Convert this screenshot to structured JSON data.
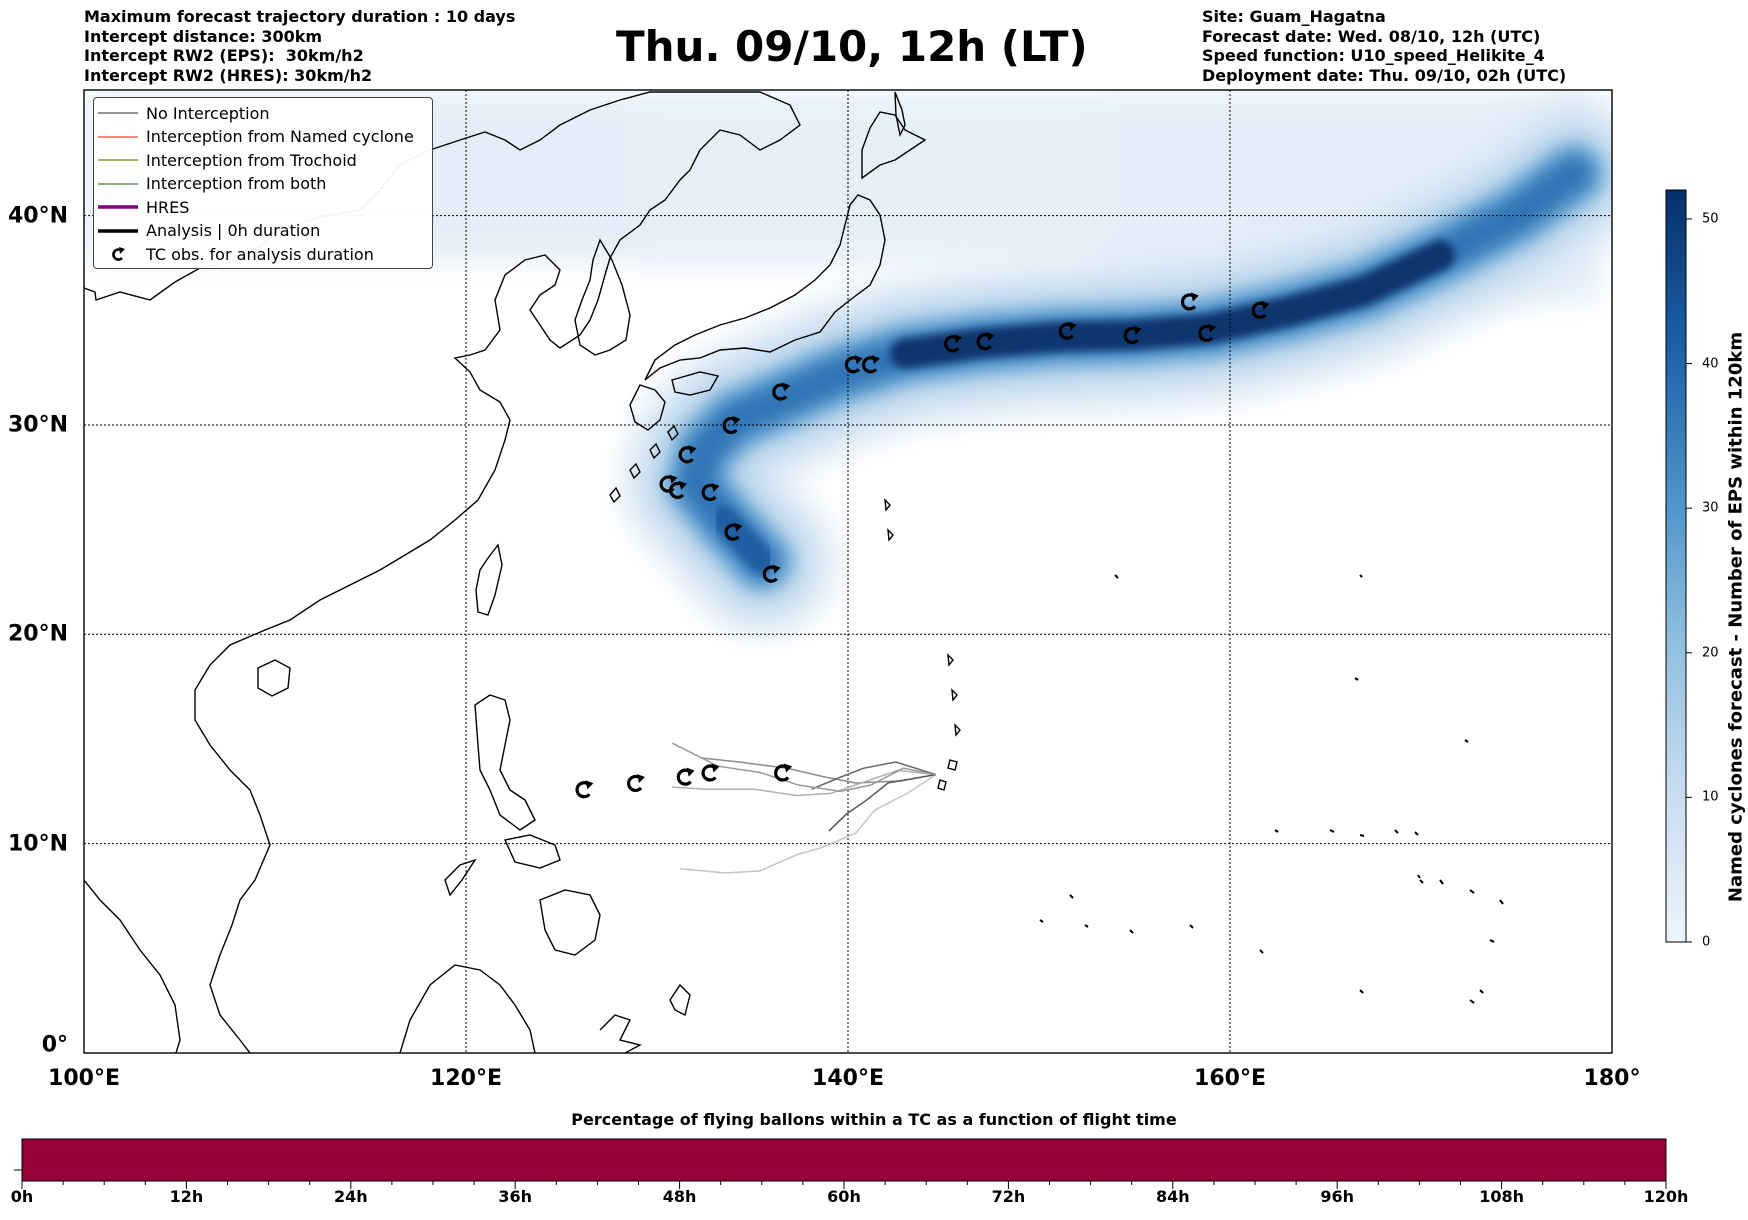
{
  "header_left": {
    "line1": "Maximum forecast trajectory duration : 10 days",
    "line2": "Intercept distance: 300km",
    "line3": "Intercept RW2 (EPS):  30km/h2",
    "line4": "Intercept RW2 (HRES): 30km/h2"
  },
  "title": "Thu. 09/10, 12h (LT)",
  "header_right": {
    "line1": "Site: Guam_Hagatna",
    "line2": "Forecast date: Wed. 08/10, 12h (UTC)",
    "line3": "Speed function: U10_speed_Helikite_4",
    "line4": "Deployment date: Thu. 09/10, 02h (UTC)"
  },
  "legend": [
    {
      "label": "No Interception",
      "color": "#555555",
      "kind": "thin"
    },
    {
      "label": "Interception from Named cyclone",
      "color": "#e0482a",
      "kind": "thin"
    },
    {
      "label": "Interception from Trochoid",
      "color": "#808000",
      "kind": "thin"
    },
    {
      "label": "Interception from both",
      "color": "#2e8b2e",
      "kind": "thin"
    },
    {
      "label": "HRES",
      "color": "#800080",
      "kind": "thick"
    },
    {
      "label": "Analysis | 0h duration",
      "color": "#000000",
      "kind": "thick"
    },
    {
      "label": "TC obs. for analysis duration",
      "color": "#000000",
      "kind": "marker"
    }
  ],
  "lat_labels": [
    "0°",
    "10°N",
    "20°N",
    "30°N",
    "40°N"
  ],
  "lon_labels": [
    "100°E",
    "120°E",
    "140°E",
    "160°E",
    "180°"
  ],
  "colorbar": {
    "label": "Named cyclones forecast - Number of EPS within 120km",
    "ticks": [
      "0",
      "10",
      "20",
      "30",
      "40",
      "50"
    ],
    "min": 0,
    "max": 52,
    "color_low": "#e8f1fb",
    "color_high": "#08306b"
  },
  "map": {
    "lon_range": [
      100,
      180
    ],
    "lat_range": [
      0,
      46
    ],
    "tc_observations": [
      {
        "lon": 136,
        "lat": 22.9
      },
      {
        "lon": 134,
        "lat": 24.9
      },
      {
        "lon": 132.8,
        "lat": 26.8
      },
      {
        "lon": 131.1,
        "lat": 26.9
      },
      {
        "lon": 130.6,
        "lat": 27.2
      },
      {
        "lon": 131.6,
        "lat": 28.6
      },
      {
        "lon": 133.9,
        "lat": 30.0
      },
      {
        "lon": 136.5,
        "lat": 31.6
      },
      {
        "lon": 140.3,
        "lat": 32.9
      },
      {
        "lon": 141.2,
        "lat": 32.9
      },
      {
        "lon": 145.5,
        "lat": 33.9
      },
      {
        "lon": 147.2,
        "lat": 34.0
      },
      {
        "lon": 151.5,
        "lat": 34.5
      },
      {
        "lon": 154.9,
        "lat": 34.3
      },
      {
        "lon": 157.9,
        "lat": 35.9
      },
      {
        "lon": 158.8,
        "lat": 34.4
      },
      {
        "lon": 161.6,
        "lat": 35.5
      },
      {
        "lon": 126.2,
        "lat": 12.6
      },
      {
        "lon": 128.9,
        "lat": 12.9
      },
      {
        "lon": 131.5,
        "lat": 13.2
      },
      {
        "lon": 132.8,
        "lat": 13.4
      },
      {
        "lon": 136.6,
        "lat": 13.4
      }
    ],
    "density_track": [
      [
        135.5,
        23.5
      ],
      [
        133.5,
        25.5
      ],
      [
        132,
        27.2
      ],
      [
        132.5,
        28.8
      ],
      [
        134,
        30.2
      ],
      [
        136.5,
        31.2
      ],
      [
        139.5,
        32.4
      ],
      [
        143,
        33.4
      ],
      [
        147,
        33.9
      ],
      [
        151,
        34.2
      ],
      [
        155,
        34.3
      ],
      [
        159,
        34.6
      ],
      [
        163,
        35.4
      ],
      [
        167,
        36.4
      ],
      [
        171,
        38.1
      ],
      [
        175,
        40.0
      ],
      [
        178,
        42.0
      ]
    ],
    "trajectories": [
      [
        [
          144.6,
          13.3
        ],
        [
          142.8,
          13.0
        ],
        [
          140.4,
          12.9
        ],
        [
          138.7,
          13.2
        ],
        [
          136.8,
          13.6
        ],
        [
          134.3,
          13.9
        ],
        [
          132.3,
          14.1
        ]
      ],
      [
        [
          144.6,
          13.3
        ],
        [
          142.6,
          13.5
        ],
        [
          140.7,
          12.9
        ],
        [
          139.1,
          12.4
        ],
        [
          137.3,
          12.3
        ],
        [
          135.1,
          12.6
        ],
        [
          132.6,
          12.6
        ],
        [
          130.8,
          12.7
        ]
      ],
      [
        [
          144.6,
          13.3
        ],
        [
          143.1,
          12.4
        ],
        [
          141.4,
          11.6
        ],
        [
          140.4,
          10.5
        ],
        [
          138.6,
          9.8
        ],
        [
          137.4,
          9.5
        ],
        [
          135.4,
          8.7
        ],
        [
          133.6,
          8.6
        ],
        [
          131.2,
          8.8
        ]
      ],
      [
        [
          144.6,
          13.3
        ],
        [
          142.1,
          12.9
        ],
        [
          141.0,
          12.1
        ],
        [
          139.9,
          11.4
        ],
        [
          139.0,
          10.6
        ]
      ],
      [
        [
          144.6,
          13.3
        ],
        [
          142.5,
          13.9
        ],
        [
          140.8,
          13.6
        ],
        [
          139.4,
          13.1
        ],
        [
          138.1,
          12.6
        ]
      ],
      [
        [
          144.6,
          13.3
        ],
        [
          142.9,
          13.6
        ],
        [
          141.2,
          12.8
        ],
        [
          139.6,
          12.5
        ],
        [
          137.4,
          12.8
        ],
        [
          135.4,
          13.4
        ],
        [
          133.2,
          13.7
        ],
        [
          130.8,
          14.8
        ]
      ]
    ]
  },
  "bottom": {
    "title": "Percentage of flying ballons within a TC as a function of flight time",
    "bar_color": "#99003a",
    "fraction": 1.0,
    "hour_labels": [
      "0h",
      "12h",
      "24h",
      "36h",
      "48h",
      "60h",
      "72h",
      "84h",
      "96h",
      "108h",
      "120h"
    ]
  }
}
